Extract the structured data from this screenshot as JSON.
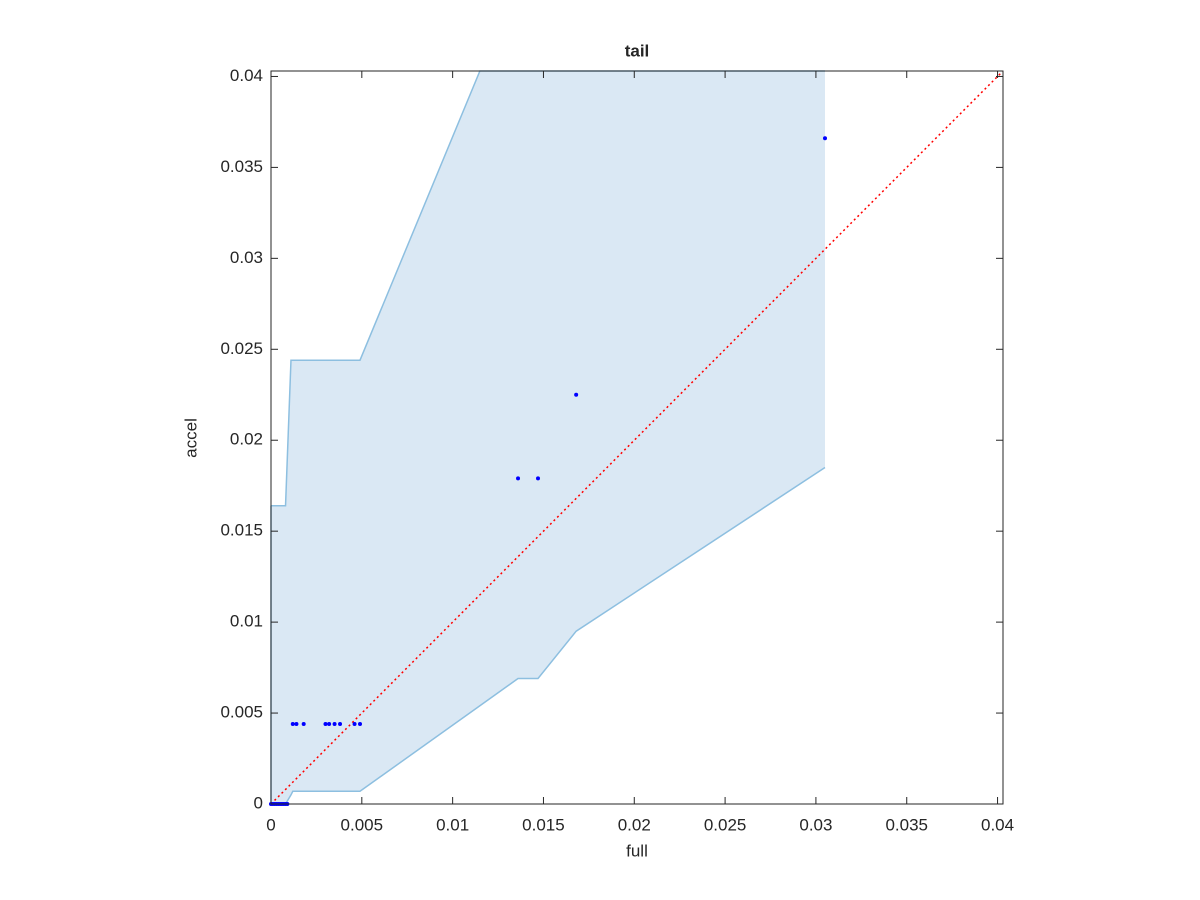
{
  "chart_data": {
    "type": "scatter",
    "title": "tail",
    "xlabel": "full",
    "ylabel": "accel",
    "xlim": [
      0,
      0.0403
    ],
    "ylim": [
      0,
      0.0403
    ],
    "xticks": [
      0,
      0.005,
      0.01,
      0.015,
      0.02,
      0.025,
      0.03,
      0.035,
      0.04
    ],
    "yticks": [
      0,
      0.005,
      0.01,
      0.015,
      0.02,
      0.025,
      0.03,
      0.035,
      0.04
    ],
    "band": {
      "color": "#dae8f4",
      "edge_color": "#8dbfe0",
      "x": [
        0,
        0.0008,
        0.0011,
        0.0012,
        0.0049,
        0.0115,
        0.0136,
        0.0147,
        0.0168,
        0.0305
      ],
      "upper": [
        0.0164,
        0.0164,
        0.0244,
        0.0244,
        0.0244,
        0.0403,
        0.0403,
        0.0403,
        0.0403,
        0.0403
      ],
      "lower": [
        0,
        0,
        0.0005,
        0.0007,
        0.0007,
        0.0054,
        0.0069,
        0.0069,
        0.0095,
        0.0185
      ]
    },
    "reference_line": {
      "color": "#ff0000",
      "x": [
        0,
        0.0403
      ],
      "y": [
        0,
        0.0403
      ]
    },
    "series": [
      {
        "color": "#0000ff",
        "x": [
          0,
          0.0001,
          0.0002,
          0.0003,
          0.0004,
          0.0005,
          0.0006,
          0.0007,
          0.0008,
          0.0009,
          0.0012,
          0.0014,
          0.0018,
          0.003,
          0.0032,
          0.0035,
          0.0038,
          0.0046,
          0.0049,
          0.0136,
          0.0147,
          0.0168,
          0.0305
        ],
        "values": [
          0,
          0,
          0,
          0,
          0,
          0,
          0,
          0,
          0,
          0,
          0.0044,
          0.0044,
          0.0044,
          0.0044,
          0.0044,
          0.0044,
          0.0044,
          0.0044,
          0.0044,
          0.0179,
          0.0179,
          0.0225,
          0.0366
        ]
      }
    ]
  }
}
